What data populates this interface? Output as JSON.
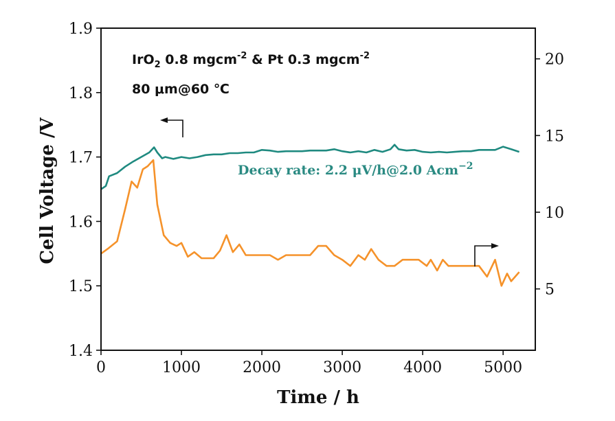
{
  "chart_data": {
    "type": "line",
    "xlabel": "Time / h",
    "ylabel": "Cell Voltage /V",
    "xlim": [
      0,
      5400
    ],
    "ylim": [
      1.4,
      1.9
    ],
    "y2lim": [
      1,
      22
    ],
    "xticks": [
      "0",
      "1000",
      "2000",
      "3000",
      "4000",
      "5000"
    ],
    "yticks": [
      "1.4",
      "1.5",
      "1.6",
      "1.7",
      "1.8",
      "1.9"
    ],
    "y2ticks": [
      "5",
      "10",
      "15",
      "20"
    ],
    "grid": false,
    "annotations": {
      "line1_main": "IrO",
      "line1_sub": "2",
      "line1_mid": " 0.8 mgcm",
      "line1_sup1": "-2",
      "line1_end": " &  Pt 0.3 mgcm",
      "line1_sup2": "-2",
      "line2": "80 μm@60 ℃",
      "decay": "Decay rate: 2.2 μV/h@2.0 Acm",
      "decay_sup": "−2"
    },
    "series": [
      {
        "axis": "left",
        "color": "#1f8a80",
        "x": [
          0,
          60,
          100,
          200,
          300,
          400,
          500,
          600,
          660,
          700,
          760,
          800,
          900,
          1000,
          1100,
          1200,
          1300,
          1400,
          1500,
          1600,
          1700,
          1800,
          1900,
          2000,
          2100,
          2200,
          2300,
          2400,
          2500,
          2600,
          2700,
          2800,
          2900,
          3000,
          3100,
          3200,
          3300,
          3400,
          3500,
          3600,
          3650,
          3700,
          3800,
          3900,
          4000,
          4100,
          4200,
          4300,
          4400,
          4500,
          4600,
          4700,
          4800,
          4900,
          5000,
          5100,
          5200
        ],
        "y": [
          1.65,
          1.655,
          1.67,
          1.675,
          1.685,
          1.693,
          1.7,
          1.707,
          1.715,
          1.707,
          1.698,
          1.7,
          1.697,
          1.7,
          1.698,
          1.7,
          1.703,
          1.704,
          1.704,
          1.706,
          1.706,
          1.707,
          1.707,
          1.711,
          1.71,
          1.708,
          1.709,
          1.709,
          1.709,
          1.71,
          1.71,
          1.71,
          1.712,
          1.709,
          1.707,
          1.709,
          1.707,
          1.711,
          1.708,
          1.712,
          1.719,
          1.712,
          1.71,
          1.711,
          1.708,
          1.707,
          1.708,
          1.707,
          1.708,
          1.709,
          1.709,
          1.711,
          1.711,
          1.711,
          1.716,
          1.712,
          1.708
        ]
      },
      {
        "axis": "right",
        "color": "#f5922a",
        "x": [
          0,
          80,
          200,
          300,
          380,
          450,
          520,
          580,
          650,
          700,
          780,
          860,
          940,
          1000,
          1080,
          1160,
          1250,
          1330,
          1400,
          1480,
          1560,
          1640,
          1720,
          1800,
          1900,
          2000,
          2100,
          2200,
          2300,
          2400,
          2500,
          2600,
          2700,
          2800,
          2900,
          3000,
          3100,
          3200,
          3280,
          3360,
          3450,
          3550,
          3650,
          3750,
          3850,
          3950,
          4050,
          4100,
          4180,
          4250,
          4320,
          4400,
          4500,
          4600,
          4700,
          4800,
          4900,
          4980,
          5050,
          5100,
          5200
        ],
        "y": [
          7.3,
          7.6,
          8.1,
          10.2,
          12.0,
          11.6,
          12.8,
          13.0,
          13.4,
          10.5,
          8.5,
          8.0,
          7.8,
          8.0,
          7.1,
          7.4,
          7.0,
          7.0,
          7.0,
          7.5,
          8.5,
          7.4,
          7.9,
          7.2,
          7.2,
          7.2,
          7.2,
          6.9,
          7.2,
          7.2,
          7.2,
          7.2,
          7.8,
          7.8,
          7.2,
          6.9,
          6.5,
          7.2,
          6.9,
          7.6,
          6.9,
          6.5,
          6.5,
          6.9,
          6.9,
          6.9,
          6.5,
          6.9,
          6.2,
          6.9,
          6.5,
          6.5,
          6.5,
          6.5,
          6.5,
          5.8,
          6.9,
          5.2,
          6.0,
          5.5,
          6.1
        ]
      }
    ]
  }
}
